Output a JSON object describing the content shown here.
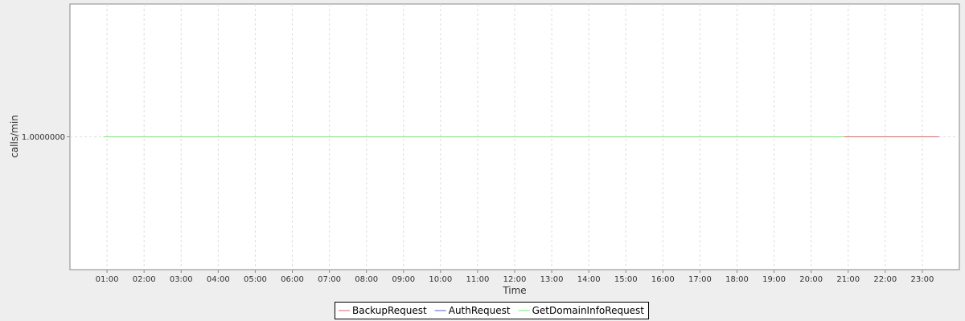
{
  "chart_data": {
    "type": "line",
    "title": "",
    "xlabel": "Time",
    "ylabel": "calls/min",
    "xlim": [
      "00:00",
      "24:00"
    ],
    "ylim": [
      0,
      2
    ],
    "x_ticks": [
      "01:00",
      "02:00",
      "03:00",
      "04:00",
      "05:00",
      "06:00",
      "07:00",
      "08:00",
      "09:00",
      "10:00",
      "11:00",
      "12:00",
      "13:00",
      "14:00",
      "15:00",
      "16:00",
      "17:00",
      "18:00",
      "19:00",
      "20:00",
      "21:00",
      "22:00",
      "23:00"
    ],
    "y_ticks": [
      {
        "value": 1,
        "label": "1.0000000"
      }
    ],
    "grid": true,
    "legend_position": "bottom",
    "series": [
      {
        "name": "BackupRequest",
        "color": "#ff5555",
        "points": [
          [
            "20:54",
            1
          ],
          [
            "23:27",
            1
          ]
        ]
      },
      {
        "name": "AuthRequest",
        "color": "#5555ff",
        "points": [
          [
            "20:54",
            1
          ],
          [
            "20:55",
            1
          ]
        ]
      },
      {
        "name": "GetDomainInfoRequest",
        "color": "#55ff55",
        "points": [
          [
            "00:54",
            1
          ],
          [
            "20:54",
            1
          ]
        ]
      }
    ]
  }
}
